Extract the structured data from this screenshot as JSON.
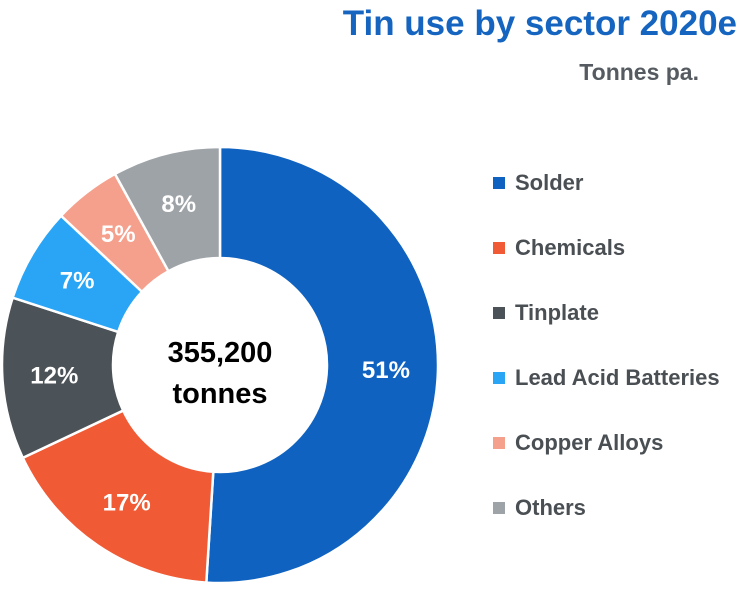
{
  "header": {
    "title": "Tin use by sector 2020e",
    "subtitle": "Tonnes pa."
  },
  "center": {
    "line1": "355,200",
    "line2": "tonnes"
  },
  "chart_data": {
    "type": "pie",
    "variant": "donut",
    "title": "Tin use by sector 2020e",
    "subtitle": "Tonnes pa.",
    "total_label": "355,200 tonnes",
    "start_angle": "12 o'clock",
    "direction": "clockwise",
    "legend_position": "right",
    "slices": [
      {
        "name": "Solder",
        "value": 51,
        "label": "51%",
        "color": "#0f62c0"
      },
      {
        "name": "Chemicals",
        "value": 17,
        "label": "17%",
        "color": "#f05a35"
      },
      {
        "name": "Tinplate",
        "value": 12,
        "label": "12%",
        "color": "#4c5358"
      },
      {
        "name": "Lead Acid Batteries",
        "value": 7,
        "label": "7%",
        "color": "#2aa5f5"
      },
      {
        "name": "Copper Alloys",
        "value": 5,
        "label": "5%",
        "color": "#f4a08d"
      },
      {
        "name": "Others",
        "value": 8,
        "label": "8%",
        "color": "#9ea3a8"
      }
    ]
  }
}
